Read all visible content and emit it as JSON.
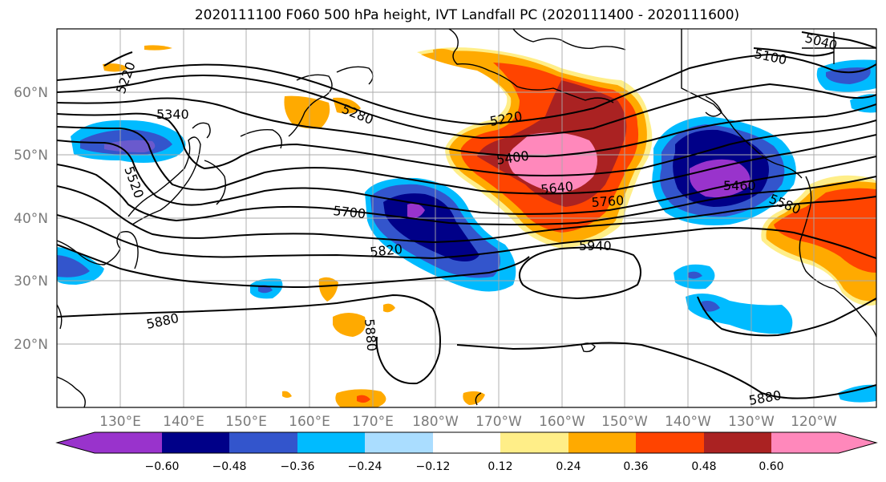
{
  "title": "2020111100 F060 500 hPa height, IVT Landfall PC (2020111400 - 2020111600)",
  "lat_labels": [
    "60°N",
    "50°N",
    "40°N",
    "30°N",
    "20°N"
  ],
  "lon_labels": [
    "130°E",
    "140°E",
    "150°E",
    "160°E",
    "170°E",
    "180°W",
    "170°W",
    "160°W",
    "150°W",
    "140°W",
    "130°W",
    "120°W"
  ],
  "contour_labels": [
    "5220",
    "5340",
    "5520",
    "5280",
    "5220",
    "5400",
    "5640",
    "5760",
    "5700",
    "5820",
    "5940",
    "5880",
    "5880",
    "5880",
    "5460",
    "5580",
    "5100",
    "5040"
  ],
  "colorbar": {
    "ticks": [
      "−0.60",
      "−0.48",
      "−0.36",
      "−0.24",
      "−0.12",
      "0.12",
      "0.24",
      "0.36",
      "0.48",
      "0.60"
    ],
    "colors": [
      "#9933cc",
      "#000088",
      "#3355cc",
      "#00bbff",
      "#aaddff",
      "#ffffff",
      "#ffee88",
      "#ffaa00",
      "#ff4400",
      "#aa2222",
      "#ff88bb"
    ]
  },
  "chart_data": {
    "type": "heatmap",
    "title": "2020111100 F060 500 hPa height, IVT Landfall PC (2020111400 - 2020111600)",
    "x_ticks": [
      "130°E",
      "140°E",
      "150°E",
      "160°E",
      "170°E",
      "180°W",
      "170°W",
      "160°W",
      "150°W",
      "140°W",
      "130°W",
      "120°W"
    ],
    "y_ticks": [
      "60°N",
      "50°N",
      "40°N",
      "30°N",
      "20°N"
    ],
    "contour_levels_labeled": [
      5040,
      5100,
      5220,
      5280,
      5340,
      5400,
      5460,
      5520,
      5580,
      5640,
      5700,
      5760,
      5820,
      5880,
      5940
    ],
    "color_levels": [
      -0.6,
      -0.48,
      -0.36,
      -0.24,
      -0.12,
      0.12,
      0.24,
      0.36,
      0.48,
      0.6
    ],
    "grid": true
  }
}
